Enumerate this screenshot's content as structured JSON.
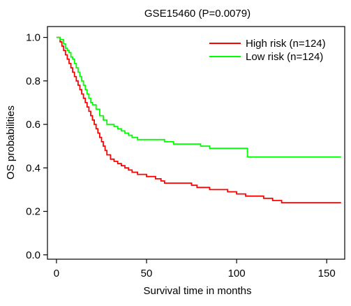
{
  "chart_data": {
    "type": "line",
    "subtype": "step",
    "title": "GSE15460 (P=0.0079)",
    "xlabel": "Survival time in months",
    "ylabel": "OS probabilities",
    "xlim": [
      -5,
      160
    ],
    "ylim": [
      -0.02,
      1.05
    ],
    "xticks": [
      0,
      50,
      100,
      150
    ],
    "yticks": [
      0.0,
      0.2,
      0.4,
      0.6,
      0.8,
      1.0
    ],
    "ytick_labels": [
      "0.0",
      "0.2",
      "0.4",
      "0.6",
      "0.8",
      "1.0"
    ],
    "grid": false,
    "legend": {
      "position": "top-right",
      "frame": false
    },
    "series": [
      {
        "name": "High risk (n=124)",
        "color": "#ff0000",
        "x": [
          0,
          2,
          3,
          4,
          5,
          6,
          7,
          8,
          9,
          10,
          11,
          12,
          13,
          14,
          15,
          16,
          17,
          18,
          19,
          20,
          21,
          22,
          23,
          24,
          25,
          26,
          27,
          28,
          30,
          32,
          34,
          36,
          38,
          40,
          42,
          45,
          50,
          55,
          58,
          60,
          65,
          70,
          75,
          78,
          80,
          85,
          90,
          95,
          100,
          105,
          110,
          115,
          120,
          125,
          130,
          140,
          150,
          158
        ],
        "y": [
          1.0,
          0.98,
          0.96,
          0.94,
          0.92,
          0.9,
          0.88,
          0.86,
          0.84,
          0.82,
          0.8,
          0.78,
          0.76,
          0.74,
          0.72,
          0.7,
          0.68,
          0.66,
          0.64,
          0.62,
          0.6,
          0.58,
          0.56,
          0.54,
          0.52,
          0.5,
          0.48,
          0.46,
          0.44,
          0.43,
          0.42,
          0.41,
          0.4,
          0.39,
          0.38,
          0.37,
          0.36,
          0.35,
          0.34,
          0.33,
          0.33,
          0.33,
          0.32,
          0.31,
          0.31,
          0.3,
          0.3,
          0.29,
          0.28,
          0.27,
          0.27,
          0.26,
          0.25,
          0.24,
          0.24,
          0.24,
          0.24,
          0.24
        ]
      },
      {
        "name": "Low risk (n=124)",
        "color": "#00ff00",
        "x": [
          0,
          2,
          4,
          5,
          6,
          7,
          8,
          9,
          10,
          11,
          12,
          13,
          14,
          15,
          16,
          17,
          18,
          19,
          20,
          22,
          24,
          26,
          28,
          30,
          32,
          34,
          36,
          38,
          40,
          42,
          45,
          50,
          55,
          60,
          65,
          70,
          75,
          80,
          85,
          90,
          100,
          106,
          110,
          120,
          130,
          140,
          150,
          158
        ],
        "y": [
          1.0,
          0.99,
          0.97,
          0.95,
          0.94,
          0.93,
          0.91,
          0.9,
          0.88,
          0.86,
          0.84,
          0.82,
          0.8,
          0.78,
          0.76,
          0.74,
          0.72,
          0.7,
          0.69,
          0.67,
          0.64,
          0.62,
          0.6,
          0.6,
          0.59,
          0.58,
          0.57,
          0.56,
          0.55,
          0.54,
          0.53,
          0.53,
          0.53,
          0.52,
          0.51,
          0.51,
          0.51,
          0.5,
          0.49,
          0.49,
          0.49,
          0.45,
          0.45,
          0.45,
          0.45,
          0.45,
          0.45,
          0.45
        ]
      }
    ]
  }
}
